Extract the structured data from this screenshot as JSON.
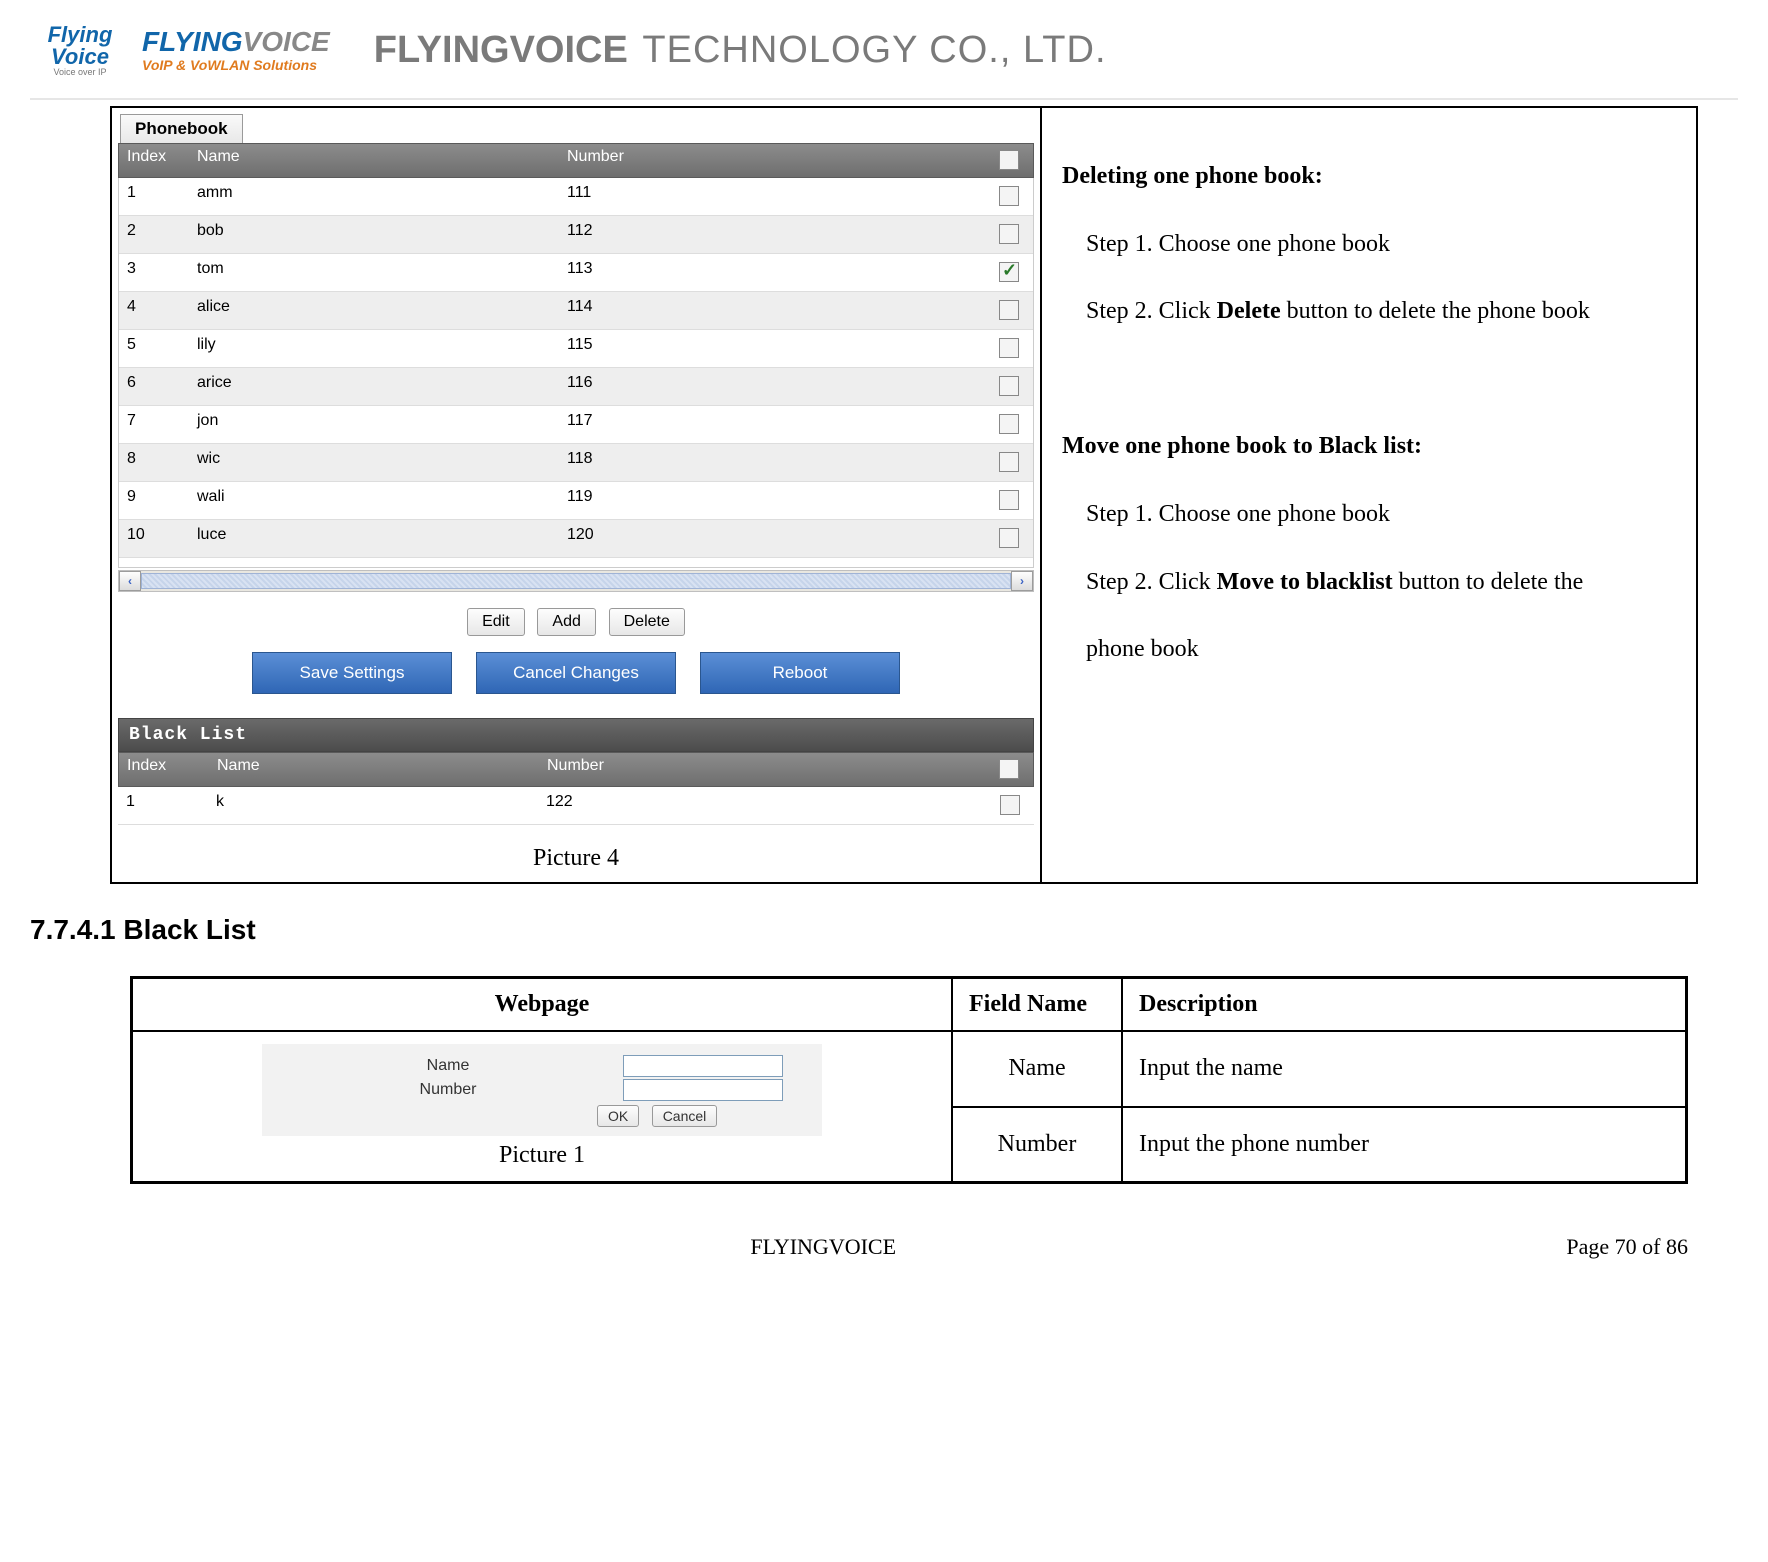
{
  "header": {
    "logo_small_top": "Flying",
    "logo_small_bottom": "Voice",
    "logo_small_tag": "Voice over IP",
    "logo_text_a": "FLYING",
    "logo_text_b": "VOICE",
    "logo_tagline": "VoIP & VoWLAN Solutions",
    "company_a": "FLYINGVOICE",
    "company_b": "TECHNOLOGY CO., LTD."
  },
  "phonebook": {
    "tab": "Phonebook",
    "columns": {
      "index": "Index",
      "name": "Name",
      "number": "Number"
    },
    "rows": [
      {
        "index": "1",
        "name": "amm",
        "number": "111",
        "checked": false,
        "even": false
      },
      {
        "index": "2",
        "name": "bob",
        "number": "112",
        "checked": false,
        "even": true
      },
      {
        "index": "3",
        "name": "tom",
        "number": "113",
        "checked": true,
        "even": false
      },
      {
        "index": "4",
        "name": "alice",
        "number": "114",
        "checked": false,
        "even": true
      },
      {
        "index": "5",
        "name": "lily",
        "number": "115",
        "checked": false,
        "even": false
      },
      {
        "index": "6",
        "name": "arice",
        "number": "116",
        "checked": false,
        "even": true
      },
      {
        "index": "7",
        "name": "jon",
        "number": "117",
        "checked": false,
        "even": false
      },
      {
        "index": "8",
        "name": "wic",
        "number": "118",
        "checked": false,
        "even": true
      },
      {
        "index": "9",
        "name": "wali",
        "number": "119",
        "checked": false,
        "even": false
      },
      {
        "index": "10",
        "name": "luce",
        "number": "120",
        "checked": false,
        "even": true
      }
    ],
    "buttons": {
      "edit": "Edit",
      "add": "Add",
      "delete": "Delete"
    },
    "bluebuttons": {
      "save": "Save Settings",
      "cancel": "Cancel Changes",
      "reboot": "Reboot"
    },
    "caption": "Picture 4"
  },
  "blacklist": {
    "title": "Black List",
    "columns": {
      "index": "Index",
      "name": "Name",
      "number": "Number"
    },
    "rows": [
      {
        "index": "1",
        "name": "k",
        "number": "122",
        "checked": false
      }
    ]
  },
  "instructions": {
    "h1": "Deleting one phone book:",
    "s11": "Step 1. Choose one phone book",
    "s12a": "Step 2. Click ",
    "s12b": "Delete",
    "s12c": " button to delete the phone book",
    "h2": "Move one phone book to Black list:",
    "s21": "Step 1. Choose one phone book",
    "s22a": "Step 2. Click ",
    "s22b": "Move to blacklist",
    "s22c": " button to delete the",
    "s22d": "phone book"
  },
  "section": {
    "heading": "7.7.4.1  Black List"
  },
  "table2": {
    "head": {
      "webpage": "Webpage",
      "field": "Field Name",
      "desc": "Description"
    },
    "form": {
      "name_label": "Name",
      "number_label": "Number",
      "ok": "OK",
      "cancel": "Cancel",
      "caption": "Picture 1"
    },
    "r1": {
      "field": "Name",
      "desc": "Input the name"
    },
    "r2": {
      "field": "Number",
      "desc": "Input the phone number"
    }
  },
  "footer": {
    "left": "",
    "center": "FLYINGVOICE",
    "right": "Page  70  of  86"
  }
}
